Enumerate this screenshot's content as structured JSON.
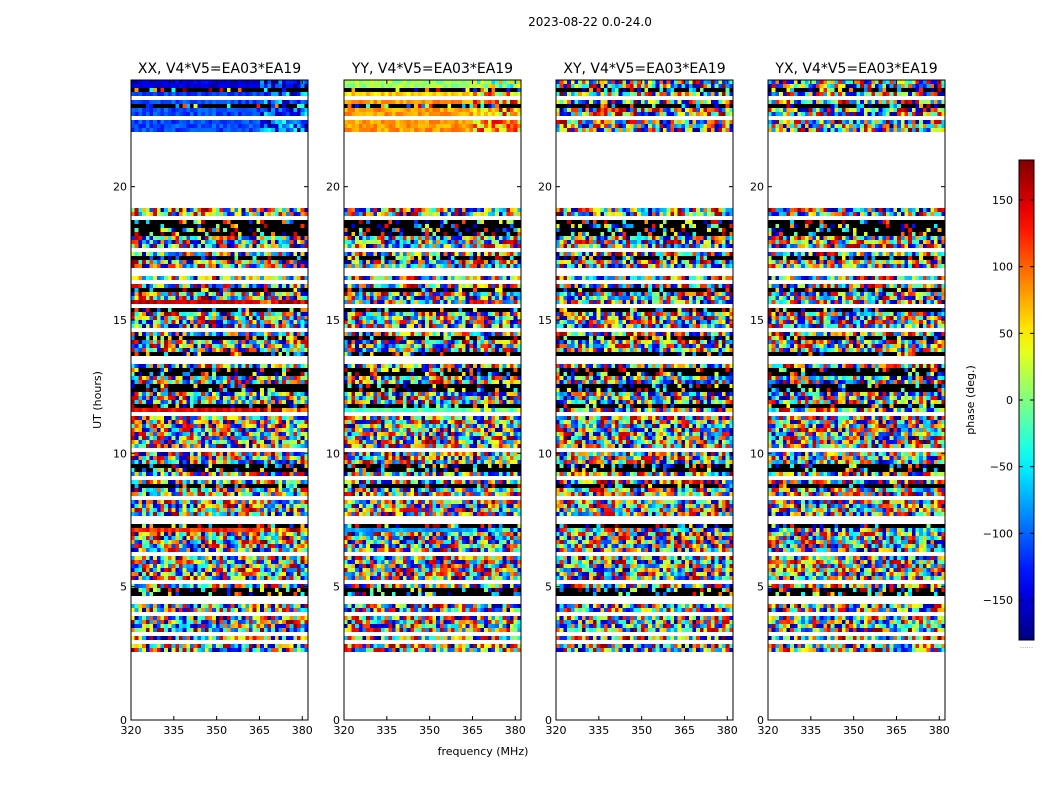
{
  "figure": {
    "suptitle": "2023-08-22 0.0-24.0"
  },
  "chart_data": {
    "type": "heatmap",
    "panels": [
      {
        "title": "XX, V4*V5=EA03*EA19",
        "pol": "XX"
      },
      {
        "title": "YY, V4*V5=EA03*EA19",
        "pol": "YY"
      },
      {
        "title": "XY, V4*V5=EA03*EA19",
        "pol": "XY"
      },
      {
        "title": "YX, V4*V5=EA03*EA19",
        "pol": "YX"
      }
    ],
    "xlabel": "frequency (MHz)",
    "ylabel": "UT (hours)",
    "xlim": [
      320,
      382
    ],
    "ylim": [
      0,
      24
    ],
    "xticks": [
      320,
      335,
      350,
      365,
      380
    ],
    "yticks": [
      0,
      5,
      10,
      15,
      20
    ],
    "data_time_range_hours": [
      2.6,
      24.0
    ],
    "no_data_gap_hours": [
      19.2,
      22.0
    ],
    "blank_rows_hours": [
      2.9,
      3.3,
      3.6,
      4.0,
      4.5,
      5.2,
      6.3,
      7.5,
      8.3,
      9.1,
      10.1,
      11.5,
      13.5,
      14.6,
      15.6,
      16.4,
      16.8,
      17.6,
      18.9,
      22.6,
      23.3
    ],
    "flagged_black_rows_hours": [
      4.8,
      4.9,
      7.3,
      8.8,
      9.3,
      9.6,
      11.8,
      12.3,
      12.6,
      13.0,
      13.2,
      13.7,
      14.3,
      15.3,
      16.1,
      17.4,
      18.3,
      18.5,
      18.7,
      23.0,
      23.6
    ],
    "coherent_phase_bands": [
      {
        "panel": "XX",
        "t0": 15.3,
        "t1": 15.7,
        "phase_deg": 150
      },
      {
        "panel": "XX",
        "t0": 11.55,
        "t1": 11.85,
        "phase_deg": 140
      },
      {
        "panel": "XX",
        "t0": 7.05,
        "t1": 7.35,
        "phase_deg": 120
      },
      {
        "panel": "XX",
        "t0": 18.3,
        "t1": 18.6,
        "phase_deg": -20
      },
      {
        "panel": "XX",
        "t0": 22.0,
        "t1": 23.7,
        "phase_deg": -110
      },
      {
        "panel": "XX",
        "t0": 23.55,
        "t1": 24.0,
        "phase_deg": -150
      },
      {
        "panel": "YY",
        "t0": 18.3,
        "t1": 18.6,
        "phase_deg": -170
      },
      {
        "panel": "YY",
        "t0": 15.4,
        "t1": 15.65,
        "phase_deg": -40
      },
      {
        "panel": "YY",
        "t0": 11.5,
        "t1": 11.85,
        "phase_deg": -20
      },
      {
        "panel": "YY",
        "t0": 7.05,
        "t1": 7.35,
        "phase_deg": -80
      },
      {
        "panel": "YY",
        "t0": 22.0,
        "t1": 23.2,
        "phase_deg": 80
      },
      {
        "panel": "YY",
        "t0": 23.2,
        "t1": 23.55,
        "phase_deg": 60
      },
      {
        "panel": "YY",
        "t0": 23.55,
        "t1": 23.75,
        "phase_deg": -170
      },
      {
        "panel": "YY",
        "t0": 23.75,
        "t1": 24.0,
        "phase_deg": 10
      }
    ],
    "colorbar": {
      "label": "phase (deg.)",
      "range": [
        -180,
        180
      ],
      "ticks": [
        -150,
        -100,
        -50,
        0,
        50,
        100,
        150
      ],
      "tick_labels": [
        "−150",
        "−100",
        "−50",
        "0",
        "50",
        "100",
        "150"
      ],
      "colormap": "jet",
      "footnote": "......"
    }
  }
}
